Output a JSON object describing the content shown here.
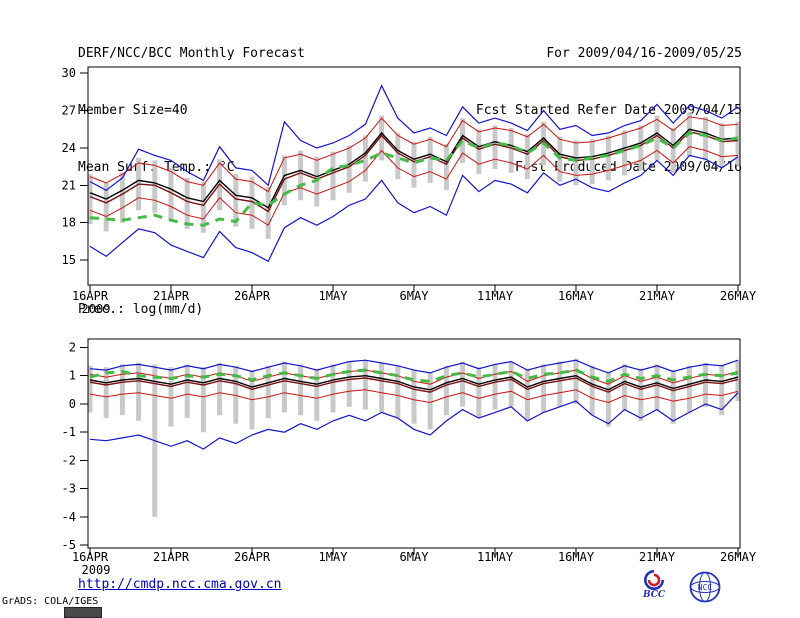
{
  "header": {
    "title": "DERF/NCC/BCC Monthly Forecast",
    "member_size": "Member Size=40",
    "forecast_period": "For 2009/04/16-2009/05/25",
    "refer_date": "Fcst Started Refer Date 2009/04/15",
    "produced_date": "Fcst Produced Date 2009/04/16"
  },
  "footer": {
    "url": "http://cmdp.ncc.cma.gov.cn",
    "credit": "GrADS: COLA/IGES",
    "logos": {
      "bcc": "BCC",
      "ncc": "NCC"
    }
  },
  "chart_data": [
    {
      "type": "line",
      "title": "Mean Surf. Temp.: °C",
      "x_count": 41,
      "x_tick_positions": [
        0,
        5,
        10,
        15,
        20,
        25,
        30,
        35,
        40
      ],
      "x_tick_labels": [
        "16APR",
        "21APR",
        "26APR",
        "1MAY",
        "6MAY",
        "11MAY",
        "16MAY",
        "21MAY",
        "26MAY"
      ],
      "x_year_label": "2009",
      "ylim": [
        13,
        30.5
      ],
      "yticks": [
        15,
        18,
        21,
        24,
        27,
        30
      ],
      "grid": false,
      "legend": "none",
      "bars": {
        "name": "ensemble-spread",
        "color": "#c9c9c9",
        "upper": [
          21.9,
          21.2,
          22.0,
          23.2,
          23.0,
          22.4,
          21.6,
          21.3,
          23.1,
          21.9,
          21.7,
          20.9,
          23.4,
          23.8,
          23.3,
          23.7,
          24.2,
          25.0,
          26.6,
          25.2,
          24.5,
          24.9,
          24.3,
          26.4,
          25.5,
          25.8,
          25.6,
          25.1,
          26.1,
          24.9,
          24.6,
          24.7,
          25.0,
          25.4,
          25.8,
          26.6,
          25.6,
          26.8,
          26.5,
          26.0,
          26.1
        ],
        "lower": [
          17.9,
          17.3,
          18.0,
          19.0,
          18.8,
          18.2,
          17.5,
          17.2,
          19.0,
          17.7,
          17.5,
          16.7,
          19.4,
          19.8,
          19.3,
          19.8,
          20.4,
          21.3,
          23.0,
          21.5,
          20.8,
          21.2,
          20.6,
          22.8,
          21.9,
          22.3,
          22.0,
          21.5,
          22.6,
          21.3,
          21.0,
          21.1,
          21.4,
          21.8,
          22.2,
          23.0,
          22.0,
          23.3,
          23.0,
          22.5,
          22.6
        ]
      },
      "series": [
        {
          "name": "mean-plus-std",
          "color": "#cd1414",
          "style": "solid",
          "width": 1,
          "values": [
            21.7,
            21.2,
            21.9,
            22.8,
            22.6,
            22.1,
            21.3,
            21.0,
            22.8,
            21.5,
            21.3,
            20.5,
            23.2,
            23.5,
            23.0,
            23.5,
            24.0,
            24.8,
            26.4,
            25.0,
            24.3,
            24.7,
            24.1,
            26.2,
            25.3,
            25.6,
            25.4,
            24.9,
            25.9,
            24.7,
            24.4,
            24.5,
            24.8,
            25.2,
            25.6,
            26.3,
            25.4,
            26.5,
            26.3,
            25.8,
            25.9
          ]
        },
        {
          "name": "mean-minus-std",
          "color": "#cd1414",
          "style": "solid",
          "width": 1,
          "values": [
            19.0,
            18.5,
            19.2,
            20.0,
            19.8,
            19.3,
            18.6,
            18.3,
            20.0,
            18.8,
            18.6,
            17.8,
            20.4,
            20.8,
            20.3,
            20.8,
            21.3,
            22.2,
            23.8,
            22.4,
            21.7,
            22.1,
            21.5,
            23.6,
            22.7,
            23.1,
            22.8,
            22.3,
            23.4,
            22.1,
            21.8,
            21.9,
            22.2,
            22.6,
            23.0,
            23.8,
            22.8,
            24.1,
            23.8,
            23.3,
            23.4
          ]
        },
        {
          "name": "ensemble-max",
          "color": "#1414cd",
          "style": "solid",
          "width": 1.2,
          "values": [
            21.3,
            20.6,
            21.6,
            23.9,
            23.4,
            23.0,
            22.1,
            21.4,
            24.1,
            22.4,
            22.2,
            21.0,
            26.1,
            24.6,
            24.0,
            24.4,
            25.0,
            25.9,
            29.0,
            26.4,
            25.2,
            25.6,
            25.0,
            27.3,
            26.0,
            26.4,
            26.0,
            25.4,
            27.0,
            25.5,
            25.8,
            25.0,
            25.2,
            25.8,
            26.2,
            27.5,
            26.0,
            27.4,
            27.0,
            26.4,
            27.3
          ]
        },
        {
          "name": "ensemble-min",
          "color": "#1414cd",
          "style": "solid",
          "width": 1.2,
          "values": [
            16.1,
            15.3,
            16.4,
            17.5,
            17.2,
            16.2,
            15.7,
            15.2,
            17.3,
            16.0,
            15.6,
            14.9,
            17.6,
            18.4,
            17.8,
            18.5,
            19.4,
            19.9,
            21.4,
            19.6,
            18.8,
            19.3,
            18.6,
            21.8,
            20.5,
            21.4,
            21.1,
            20.4,
            22.0,
            21.0,
            21.5,
            20.8,
            20.5,
            21.2,
            21.8,
            23.0,
            21.8,
            23.4,
            23.1,
            22.4,
            23.3
          ]
        },
        {
          "name": "control-run",
          "color": "#7a1010",
          "style": "solid",
          "width": 1.4,
          "values": [
            20.1,
            19.6,
            20.3,
            21.1,
            21.0,
            20.4,
            19.7,
            19.4,
            21.1,
            19.9,
            19.7,
            18.9,
            21.5,
            22.0,
            21.5,
            22.0,
            22.5,
            23.4,
            25.0,
            23.6,
            22.9,
            23.3,
            22.7,
            24.8,
            23.9,
            24.3,
            24.0,
            23.5,
            24.6,
            23.3,
            23.0,
            23.1,
            23.4,
            23.8,
            24.2,
            25.0,
            24.0,
            25.3,
            25.0,
            24.5,
            24.6
          ]
        },
        {
          "name": "ensemble-mean",
          "color": "#000000",
          "style": "solid",
          "width": 1.4,
          "values": [
            20.4,
            19.9,
            20.6,
            21.4,
            21.2,
            20.7,
            20.0,
            19.7,
            21.4,
            20.2,
            20.0,
            19.2,
            21.8,
            22.2,
            21.7,
            22.2,
            22.7,
            23.6,
            25.2,
            23.8,
            23.1,
            23.5,
            22.9,
            25.0,
            24.1,
            24.5,
            24.2,
            23.7,
            24.8,
            23.5,
            23.2,
            23.3,
            23.6,
            24.0,
            24.4,
            25.2,
            24.2,
            25.5,
            25.2,
            24.7,
            24.8
          ]
        },
        {
          "name": "climatology",
          "color": "#44bb44",
          "style": "dashed",
          "width": 3,
          "values": [
            18.4,
            18.3,
            18.2,
            18.4,
            18.6,
            18.2,
            17.9,
            17.8,
            18.3,
            18.1,
            19.6,
            19.4,
            20.3,
            21.0,
            21.4,
            22.4,
            22.6,
            23.0,
            23.6,
            23.2,
            22.8,
            23.2,
            23.0,
            24.6,
            24.0,
            24.4,
            24.2,
            23.6,
            24.4,
            23.2,
            23.0,
            23.2,
            23.4,
            23.8,
            24.2,
            24.8,
            24.0,
            25.2,
            25.0,
            24.6,
            24.8
          ]
        }
      ]
    },
    {
      "type": "line",
      "title": "Prec.: log(mm/d)",
      "x_count": 41,
      "x_tick_positions": [
        0,
        5,
        10,
        15,
        20,
        25,
        30,
        35,
        40
      ],
      "x_tick_labels": [
        "16APR",
        "21APR",
        "26APR",
        "1MAY",
        "6MAY",
        "11MAY",
        "16MAY",
        "21MAY",
        "26MAY"
      ],
      "x_year_label": "2009",
      "ylim": [
        -5.1,
        2.3
      ],
      "yticks": [
        -5,
        -4,
        -3,
        -2,
        -1,
        0,
        1,
        2
      ],
      "grid": false,
      "legend": "none",
      "bars": {
        "name": "ensemble-spread",
        "color": "#c9c9c9",
        "upper": [
          1.35,
          1.3,
          1.4,
          1.45,
          1.4,
          1.3,
          1.4,
          1.3,
          1.45,
          1.35,
          1.2,
          1.35,
          1.5,
          1.4,
          1.25,
          1.4,
          1.5,
          1.55,
          1.45,
          1.35,
          1.2,
          1.1,
          1.35,
          1.5,
          1.3,
          1.4,
          1.5,
          1.25,
          1.4,
          1.5,
          1.6,
          1.35,
          1.15,
          1.4,
          1.25,
          1.4,
          1.2,
          1.35,
          1.45,
          1.4,
          1.55
        ],
        "lower": [
          -0.3,
          -0.5,
          -0.4,
          -0.6,
          -4.0,
          -0.8,
          -0.5,
          -1.0,
          -0.4,
          -0.7,
          -0.9,
          -0.5,
          -0.3,
          -0.4,
          -0.6,
          -0.3,
          -0.1,
          -0.2,
          -0.3,
          -0.5,
          -0.7,
          -0.9,
          -0.4,
          -0.1,
          -0.5,
          -0.2,
          -0.1,
          -0.6,
          -0.3,
          -0.1,
          0.0,
          -0.4,
          -0.8,
          -0.2,
          -0.6,
          -0.2,
          -0.7,
          -0.3,
          -0.1,
          -0.4,
          0.1
        ]
      },
      "series": [
        {
          "name": "mean-plus-std",
          "color": "#cd1414",
          "style": "solid",
          "width": 1,
          "values": [
            1.05,
            0.95,
            1.05,
            1.1,
            1.0,
            0.9,
            1.05,
            0.95,
            1.1,
            1.0,
            0.8,
            0.95,
            1.1,
            1.0,
            0.9,
            1.05,
            1.15,
            1.2,
            1.1,
            1.0,
            0.8,
            0.7,
            0.95,
            1.1,
            0.9,
            1.05,
            1.15,
            0.8,
            1.0,
            1.1,
            1.2,
            0.9,
            0.7,
            1.0,
            0.8,
            0.95,
            0.75,
            0.9,
            1.05,
            1.0,
            1.15
          ]
        },
        {
          "name": "mean-minus-std",
          "color": "#cd1414",
          "style": "solid",
          "width": 1,
          "values": [
            0.35,
            0.25,
            0.35,
            0.4,
            0.3,
            0.2,
            0.35,
            0.25,
            0.4,
            0.3,
            0.15,
            0.25,
            0.4,
            0.3,
            0.2,
            0.35,
            0.45,
            0.5,
            0.4,
            0.3,
            0.15,
            0.05,
            0.25,
            0.4,
            0.2,
            0.35,
            0.45,
            0.15,
            0.3,
            0.4,
            0.5,
            0.2,
            0.05,
            0.3,
            0.15,
            0.25,
            0.1,
            0.2,
            0.35,
            0.3,
            0.45
          ]
        },
        {
          "name": "ensemble-max",
          "color": "#1414cd",
          "style": "solid",
          "width": 1.2,
          "values": [
            1.25,
            1.2,
            1.35,
            1.4,
            1.3,
            1.2,
            1.35,
            1.25,
            1.4,
            1.3,
            1.15,
            1.3,
            1.45,
            1.35,
            1.2,
            1.35,
            1.5,
            1.55,
            1.45,
            1.35,
            1.2,
            1.1,
            1.3,
            1.45,
            1.25,
            1.4,
            1.5,
            1.2,
            1.35,
            1.45,
            1.55,
            1.3,
            1.1,
            1.35,
            1.2,
            1.35,
            1.15,
            1.3,
            1.4,
            1.35,
            1.55
          ]
        },
        {
          "name": "ensemble-min",
          "color": "#1414cd",
          "style": "solid",
          "width": 1.2,
          "values": [
            -1.25,
            -1.3,
            -1.2,
            -1.1,
            -1.3,
            -1.5,
            -1.3,
            -1.6,
            -1.2,
            -1.4,
            -1.1,
            -0.9,
            -1.0,
            -0.7,
            -0.9,
            -0.6,
            -0.4,
            -0.6,
            -0.3,
            -0.5,
            -0.9,
            -1.1,
            -0.6,
            -0.2,
            -0.5,
            -0.3,
            -0.1,
            -0.6,
            -0.3,
            -0.1,
            0.1,
            -0.4,
            -0.7,
            -0.2,
            -0.5,
            -0.2,
            -0.6,
            -0.3,
            0.0,
            -0.2,
            0.4
          ]
        },
        {
          "name": "control-run",
          "color": "#7a1010",
          "style": "solid",
          "width": 1.4,
          "values": [
            0.77,
            0.67,
            0.77,
            0.82,
            0.72,
            0.62,
            0.77,
            0.67,
            0.82,
            0.72,
            0.52,
            0.67,
            0.82,
            0.72,
            0.62,
            0.77,
            0.87,
            0.92,
            0.82,
            0.72,
            0.52,
            0.42,
            0.67,
            0.82,
            0.62,
            0.77,
            0.87,
            0.52,
            0.72,
            0.82,
            0.92,
            0.62,
            0.42,
            0.72,
            0.52,
            0.67,
            0.47,
            0.62,
            0.77,
            0.72,
            0.87
          ]
        },
        {
          "name": "ensemble-mean",
          "color": "#000000",
          "style": "solid",
          "width": 1.4,
          "values": [
            0.85,
            0.75,
            0.85,
            0.9,
            0.8,
            0.7,
            0.85,
            0.75,
            0.9,
            0.8,
            0.6,
            0.75,
            0.9,
            0.8,
            0.7,
            0.85,
            0.95,
            1.0,
            0.9,
            0.8,
            0.6,
            0.5,
            0.75,
            0.9,
            0.7,
            0.85,
            0.95,
            0.6,
            0.8,
            0.9,
            1.0,
            0.7,
            0.5,
            0.8,
            0.6,
            0.75,
            0.55,
            0.7,
            0.85,
            0.8,
            0.95
          ]
        },
        {
          "name": "climatology",
          "color": "#44bb44",
          "style": "dashed",
          "width": 3,
          "values": [
            0.95,
            1.1,
            1.15,
            1.0,
            0.95,
            0.9,
            1.0,
            0.95,
            1.05,
            1.0,
            0.85,
            1.0,
            1.1,
            1.0,
            0.9,
            1.05,
            1.15,
            1.2,
            1.1,
            1.0,
            0.85,
            0.8,
            1.0,
            1.1,
            0.95,
            1.05,
            1.15,
            0.9,
            1.05,
            1.1,
            1.2,
            0.95,
            0.8,
            1.05,
            0.9,
            1.0,
            0.85,
            0.95,
            1.05,
            1.0,
            1.1
          ]
        }
      ]
    }
  ]
}
